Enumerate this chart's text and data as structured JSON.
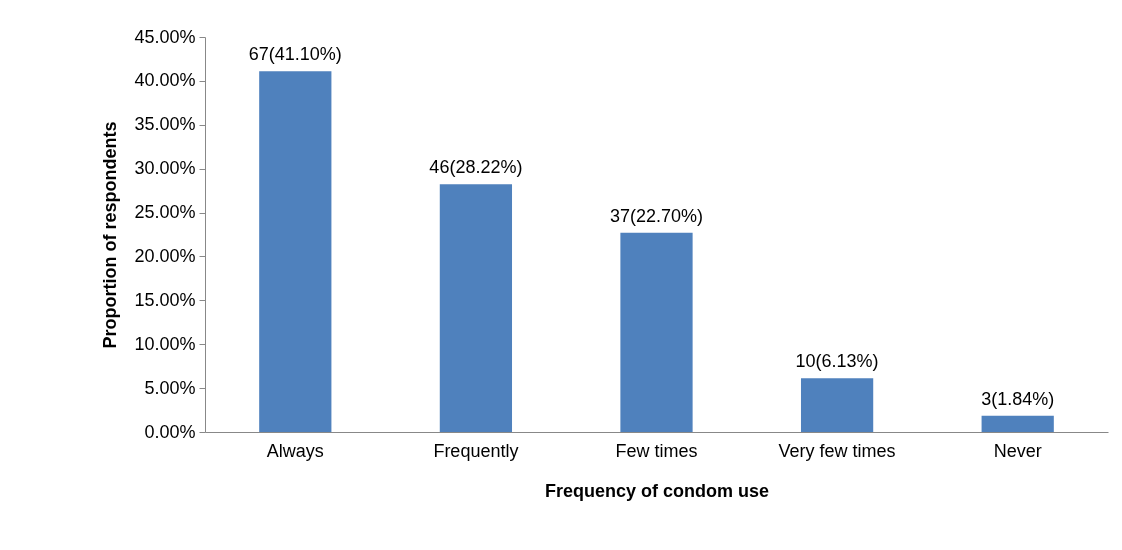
{
  "chart_data": {
    "type": "bar",
    "xlabel": "Frequency of condom use",
    "ylabel": "Proportion of respondents",
    "categories": [
      "Always",
      "Frequently",
      "Few times",
      "Very few times",
      "Never"
    ],
    "series": [
      {
        "color": "#4f81bd",
        "values": [
          41.1,
          28.22,
          22.7,
          6.13,
          1.84
        ],
        "value_labels": [
          "67(41.10%)",
          "46(28.22%)",
          "37(22.70%)",
          "10(6.13%)",
          "3(1.84%)"
        ]
      }
    ],
    "ylim": [
      0,
      45
    ],
    "yticks": [
      {
        "value": 0,
        "label": "0.00%"
      },
      {
        "value": 5,
        "label": "5.00%"
      },
      {
        "value": 10,
        "label": "10.00%"
      },
      {
        "value": 15,
        "label": "15.00%"
      },
      {
        "value": 20,
        "label": "20.00%"
      },
      {
        "value": 25,
        "label": "25.00%"
      },
      {
        "value": 30,
        "label": "30.00%"
      },
      {
        "value": 35,
        "label": "35.00%"
      },
      {
        "value": 40,
        "label": "40.00%"
      },
      {
        "value": 45,
        "label": "45.00%"
      }
    ],
    "grid": false,
    "legend": false
  }
}
